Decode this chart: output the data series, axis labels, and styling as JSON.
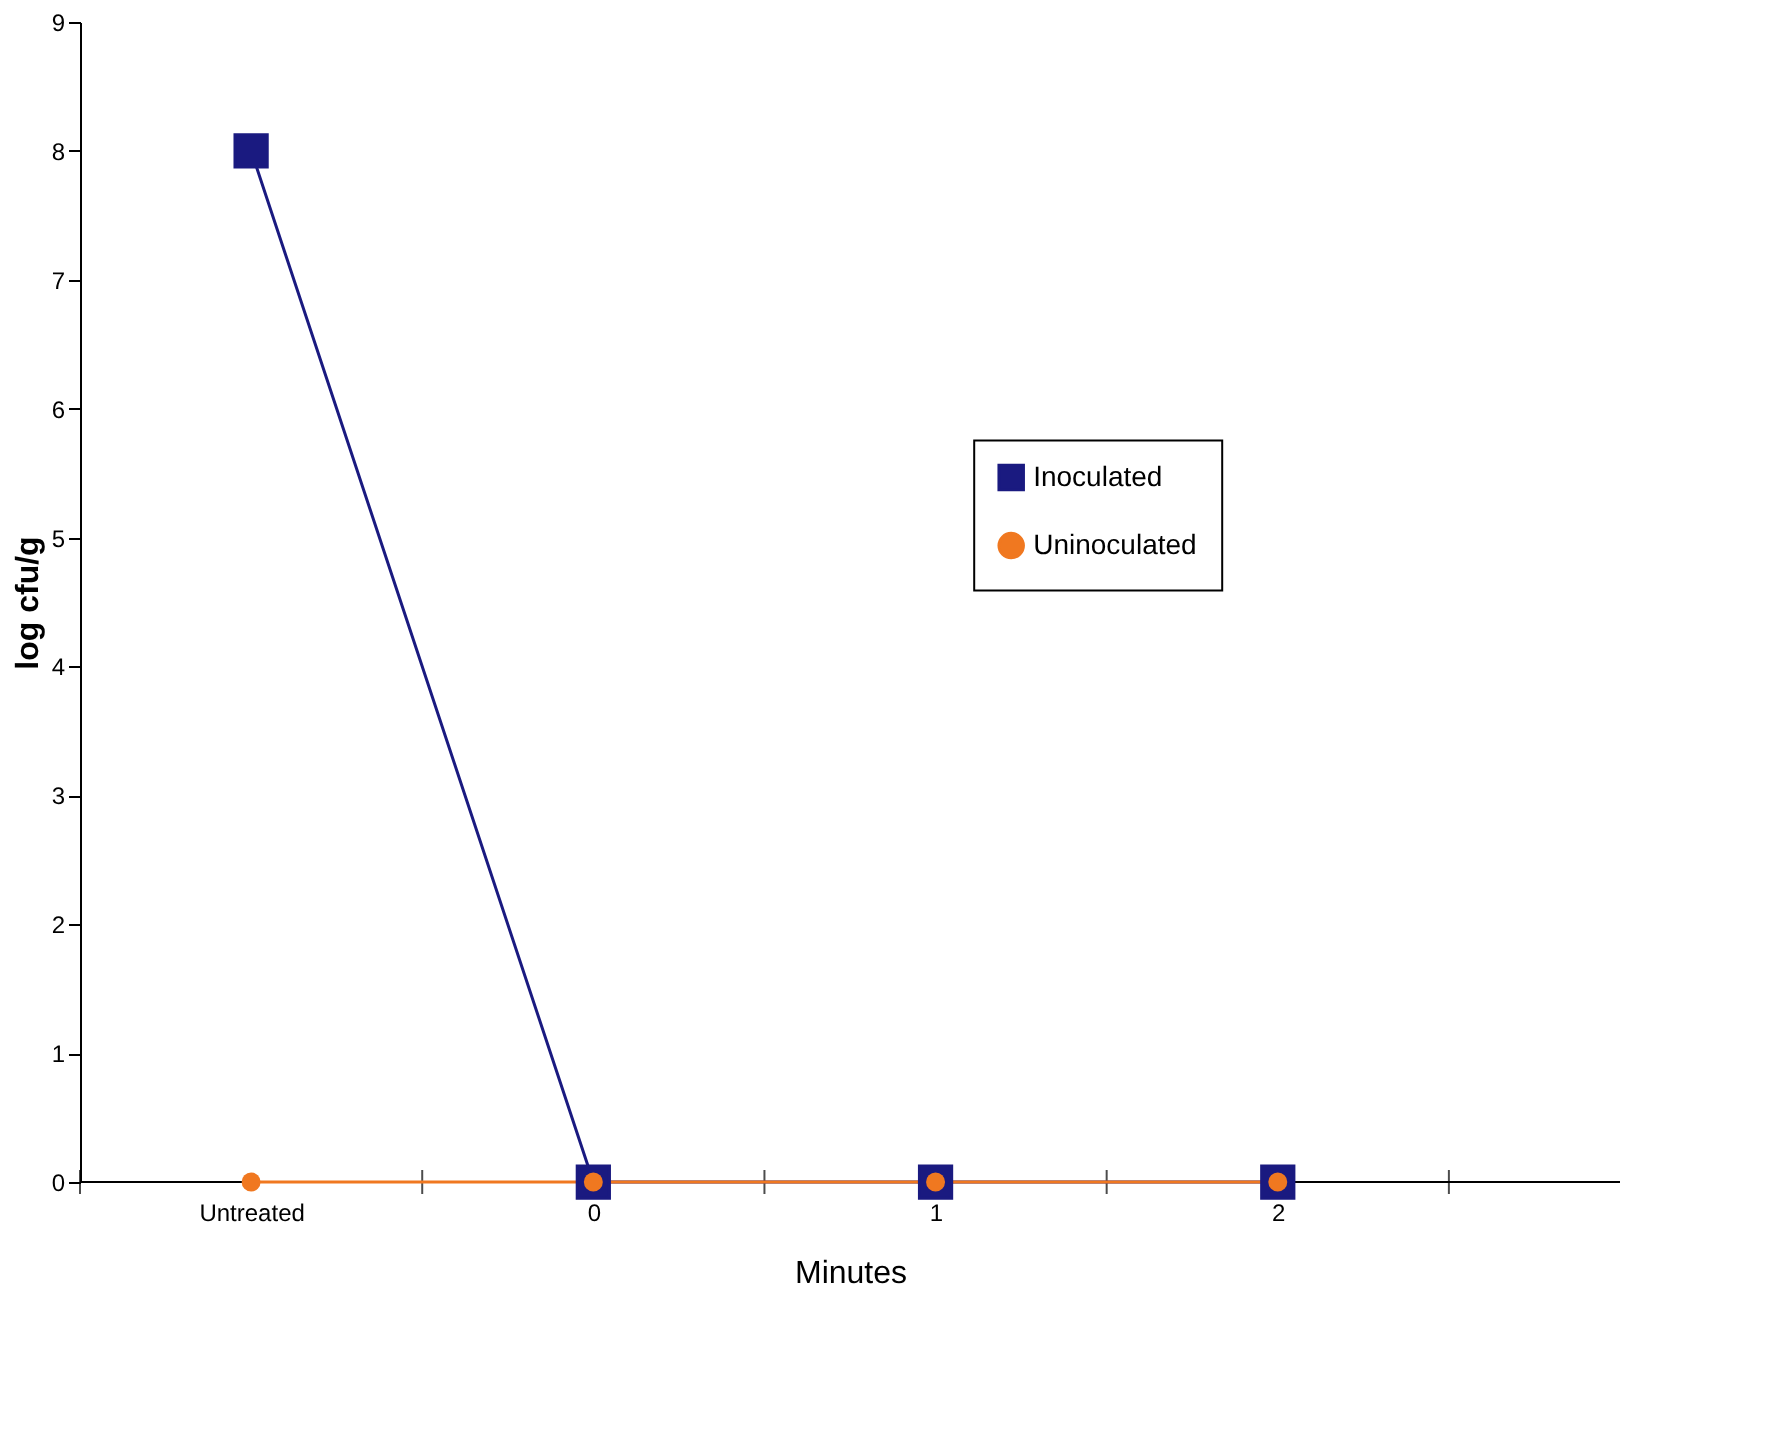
{
  "chart_data": {
    "type": "line",
    "xlabel": "Minutes",
    "ylabel": "log cfu/g",
    "categories": [
      "Untreated",
      "0",
      "1",
      "2"
    ],
    "series": [
      {
        "name": "Inoculated",
        "color": "#1a1a80",
        "marker": "square",
        "values": [
          8,
          0,
          0,
          0
        ]
      },
      {
        "name": "Uninoculated",
        "color": "#f07820",
        "marker": "circle",
        "values": [
          0,
          0,
          0,
          0
        ]
      }
    ],
    "ylim": [
      0,
      9
    ],
    "yticks": [
      0,
      1,
      2,
      3,
      4,
      5,
      6,
      7,
      8,
      9
    ],
    "grid": false,
    "legend": "right"
  }
}
